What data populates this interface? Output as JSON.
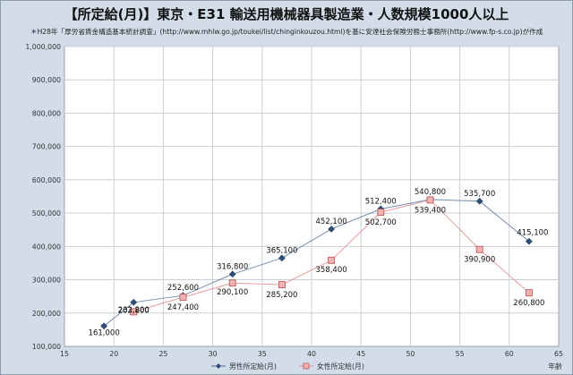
{
  "chart_data": {
    "type": "line",
    "title": "【所定給(月)】東京・E31 輸送用機械器具製造業・人数規模1000人以上",
    "subtitle": "＊H28年「厚労省賃金構造基本統計調査」(http://www.mhlw.go.jp/toukei/list/chinginkouzou.html)を基に安達社会保険労務士事務所(http://www.fp-s.co.jp)が作成",
    "xlabel": "年齢",
    "ylabel": "",
    "xlim": [
      15,
      65
    ],
    "ylim": [
      100000,
      1000000
    ],
    "x_ticks": [
      "15",
      "20",
      "25",
      "30",
      "35",
      "40",
      "45",
      "50",
      "55",
      "60",
      "65"
    ],
    "y_ticks": [
      "100,000",
      "200,000",
      "300,000",
      "400,000",
      "500,000",
      "600,000",
      "700,000",
      "800,000",
      "900,000",
      "1,000,000"
    ],
    "grid": true,
    "legend_position": "bottom",
    "series": [
      {
        "name": "男性所定給(月)",
        "color": "#4a6a94",
        "marker": "diamond",
        "x": [
          19,
          22,
          27,
          32,
          37,
          42,
          47,
          52,
          57,
          62
        ],
        "values": [
          161000,
          232200,
          252600,
          316800,
          365100,
          452100,
          512400,
          540800,
          535700,
          415100
        ],
        "labels": [
          "161,000",
          "232,200",
          "252,600",
          "316,800",
          "365,100",
          "452,100",
          "512,400",
          "540,800",
          "535,700",
          "415,100"
        ]
      },
      {
        "name": "女性所定給(月)",
        "color": "#e08c8c",
        "marker": "square",
        "x": [
          22,
          27,
          32,
          37,
          42,
          47,
          52,
          57,
          62
        ],
        "values": [
          203800,
          247400,
          290100,
          285200,
          358400,
          502700,
          539400,
          390900,
          260800
        ],
        "labels": [
          "203,800",
          "247,400",
          "290,100",
          "285,200",
          "358,400",
          "502,700",
          "539,400",
          "390,900",
          "260,800"
        ]
      }
    ]
  }
}
